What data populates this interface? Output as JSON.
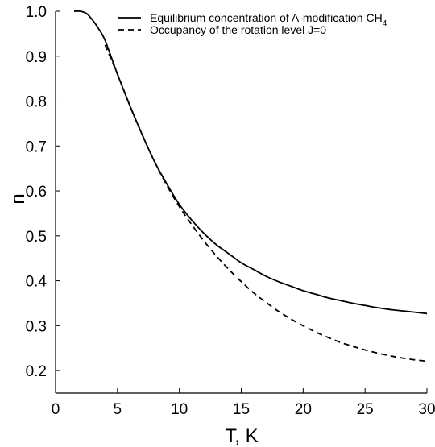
{
  "chart_data": {
    "type": "line",
    "xlabel": "T, K",
    "ylabel": "n",
    "xlim": [
      0,
      30
    ],
    "ylim": [
      0.15,
      1.0
    ],
    "x_ticks": [
      0,
      5,
      10,
      15,
      20,
      25,
      30
    ],
    "y_ticks": [
      0.2,
      0.3,
      0.4,
      0.5,
      0.6,
      0.7,
      0.8,
      0.9,
      1.0
    ],
    "x_tick_labels": [
      "0",
      "5",
      "10",
      "15",
      "20",
      "25",
      "30"
    ],
    "y_tick_labels": [
      "0.2",
      "0.3",
      "0.4",
      "0.5",
      "0.6",
      "0.7",
      "0.8",
      "0.9",
      "1.0"
    ],
    "grid": false,
    "legend_position": "top-right",
    "series": [
      {
        "name": "Equilibrium concentration of A-modification CH",
        "name_subscript": "4",
        "style": "solid",
        "color": "#000000",
        "x": [
          1.5,
          2,
          2.5,
          3,
          3.5,
          4,
          5,
          6,
          7,
          8,
          9,
          10,
          11,
          12,
          13,
          14,
          15,
          16,
          17,
          18,
          19,
          20,
          21,
          22,
          23,
          24,
          25,
          26,
          27,
          28,
          29,
          30
        ],
        "y": [
          1.0,
          1.0,
          0.995,
          0.98,
          0.96,
          0.935,
          0.86,
          0.79,
          0.725,
          0.665,
          0.615,
          0.57,
          0.535,
          0.505,
          0.48,
          0.46,
          0.44,
          0.425,
          0.41,
          0.398,
          0.388,
          0.378,
          0.37,
          0.362,
          0.356,
          0.35,
          0.345,
          0.34,
          0.336,
          0.333,
          0.33,
          0.327
        ]
      },
      {
        "name": "Occupancy  of the rotation level J=0",
        "style": "dashed",
        "color": "#000000",
        "x": [
          4,
          5,
          6,
          7,
          8,
          9,
          10,
          11,
          12,
          13,
          14,
          15,
          16,
          17,
          18,
          19,
          20,
          21,
          22,
          23,
          24,
          25,
          26,
          27,
          28,
          29,
          30
        ],
        "y": [
          0.925,
          0.86,
          0.79,
          0.725,
          0.665,
          0.612,
          0.565,
          0.525,
          0.488,
          0.455,
          0.425,
          0.398,
          0.373,
          0.352,
          0.332,
          0.315,
          0.3,
          0.286,
          0.274,
          0.263,
          0.254,
          0.246,
          0.239,
          0.233,
          0.228,
          0.224,
          0.221
        ]
      }
    ]
  }
}
